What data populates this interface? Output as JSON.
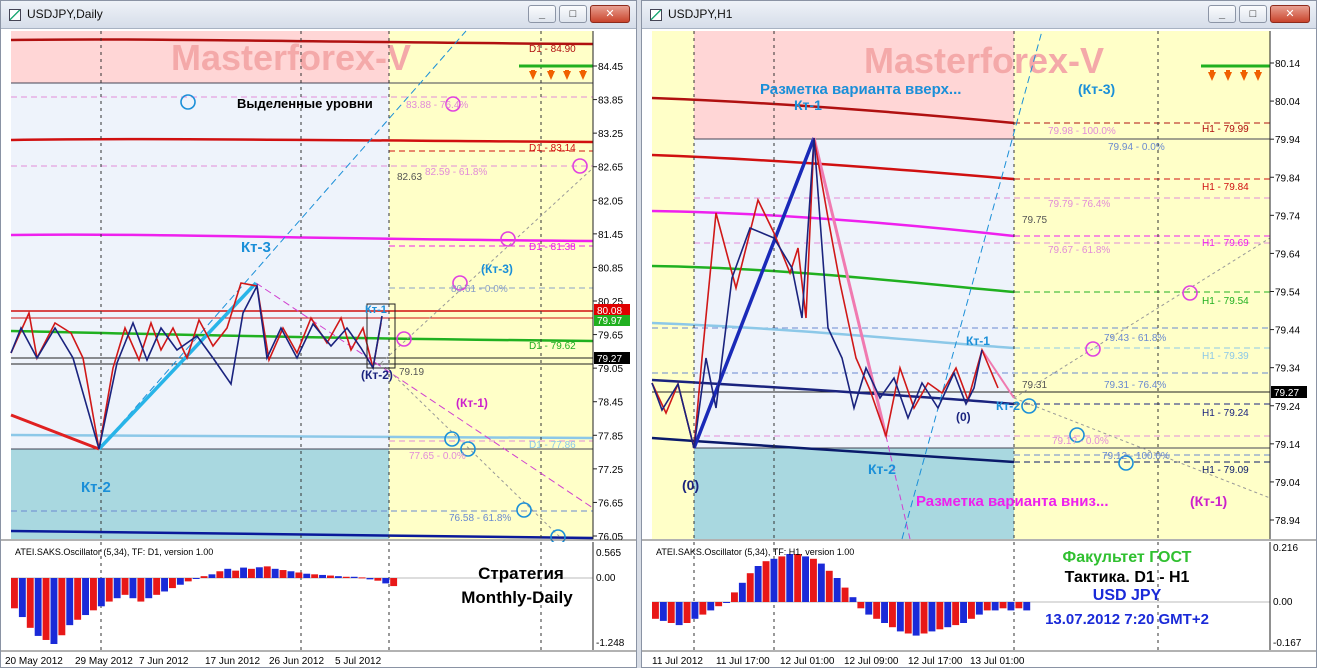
{
  "windows": [
    {
      "title": "USDJPY,Daily"
    },
    {
      "title": "USDJPY,H1"
    }
  ],
  "window_buttons": {
    "minimize": "_",
    "maximize": "□",
    "close": "✕"
  },
  "colors": {
    "pink_zone": "#ffd6d6",
    "blue_zone": "#eef3fb",
    "yellow_zone": "#ffffc8",
    "teal_zone": "#a9d8e0",
    "accent_blue": "#1a8fd8",
    "magenta": "#ee20ee",
    "red": "#d01010",
    "navy": "#0a1a9a"
  },
  "chart_data": [
    {
      "type": "line",
      "title": "USDJPY,Daily",
      "watermark": "Masterforex-V",
      "ylim": [
        76.05,
        85.0
      ],
      "x_tick_labels": [
        "20 May 2012",
        "29 May 2012",
        "7 Jun 2012",
        "17 Jun 2012",
        "26 Jun 2012",
        "5 Jul 2012"
      ],
      "y_ticks": [
        "84.45",
        "83.85",
        "83.25",
        "82.65",
        "82.05",
        "81.45",
        "80.85",
        "80.25",
        "79.65",
        "79.05",
        "78.45",
        "77.85",
        "77.25",
        "76.65",
        "76.05"
      ],
      "current_price": "79.27",
      "price_badge": "80.08",
      "price_badge_2": "79.97",
      "price_series_red": [
        79.7,
        80.2,
        79.5,
        80.1,
        79.6,
        80.0,
        78.9,
        79.2
      ],
      "price_series_blue": [
        77.5,
        78.3,
        79.0,
        79.7,
        80.5,
        79.3,
        79.5,
        79.2
      ],
      "annotations": [
        {
          "text": "Выделенные уровни"
        },
        {
          "text": "D1 - 84.90"
        },
        {
          "text": "83.88 - 76.4%"
        },
        {
          "text": "D1 - 83.14"
        },
        {
          "text": "82.63"
        },
        {
          "text": "82.59 - 61.8%"
        },
        {
          "text": "D1 - 81.38"
        },
        {
          "text": "80.61 - 0.0%"
        },
        {
          "text": "(Кт-3)"
        },
        {
          "text": "Кт-3"
        },
        {
          "text": "Кт-1"
        },
        {
          "text": "D1 - 79.62"
        },
        {
          "text": "(Кт-2)"
        },
        {
          "text": "79.19"
        },
        {
          "text": "(Кт-1)"
        },
        {
          "text": "D1 - 77.86"
        },
        {
          "text": "77.65 - 0.0%"
        },
        {
          "text": "Кт-2"
        },
        {
          "text": "76.58 - 61.8%"
        }
      ],
      "oscillator": {
        "label": "ATEI.SAKS.Oscillator (5,34), TF: D1, version 1.00",
        "y_ticks": [
          "0.565",
          "0.00",
          "-1.248"
        ],
        "strategy_title_1": "Стратегия",
        "strategy_title_2": "Monthly-Daily",
        "bars": [
          -0.45,
          -0.58,
          -0.74,
          -0.86,
          -0.92,
          -0.98,
          -0.85,
          -0.7,
          -0.62,
          -0.55,
          -0.48,
          -0.42,
          -0.35,
          -0.3,
          -0.25,
          -0.3,
          -0.35,
          -0.3,
          -0.25,
          -0.2,
          -0.15,
          -0.1,
          -0.05,
          0.0,
          0.06,
          0.12,
          0.22,
          0.3,
          0.24,
          0.34,
          0.3,
          0.35,
          0.38,
          0.3,
          0.26,
          0.22,
          0.18,
          0.14,
          0.12,
          0.1,
          0.08,
          0.06,
          0.04,
          0.04,
          0.02,
          -0.02,
          -0.04,
          -0.08,
          -0.12
        ]
      }
    },
    {
      "type": "line",
      "title": "USDJPY,H1",
      "watermark": "Masterforex-V",
      "ylim": [
        78.88,
        80.22
      ],
      "x_tick_labels": [
        "11 Jul 2012",
        "11 Jul 17:00",
        "12 Jul 01:00",
        "12 Jul 09:00",
        "12 Jul 17:00",
        "13 Jul 01:00"
      ],
      "y_ticks": [
        "80.14",
        "80.04",
        "79.94",
        "79.84",
        "79.74",
        "79.64",
        "79.54",
        "79.44",
        "79.34",
        "79.24",
        "79.14",
        "79.04",
        "78.94"
      ],
      "current_price": "79.27",
      "price_series_red": [
        79.28,
        79.18,
        79.72,
        79.55,
        79.78,
        79.65,
        79.7,
        79.45,
        79.6
      ],
      "price_series_navy": [
        79.2,
        79.26,
        79.18,
        79.24,
        79.2,
        79.23,
        79.25,
        79.22,
        79.38
      ],
      "annotations": [
        {
          "text": "Разметка варианта вверх..."
        },
        {
          "text": "(Кт-3)"
        },
        {
          "text": "Кт-1"
        },
        {
          "text": "79.98 - 100.0%"
        },
        {
          "text": "H1 - 79.99"
        },
        {
          "text": "79.94 - 0.0%"
        },
        {
          "text": "H1 - 79.84"
        },
        {
          "text": "79.79 - 76.4%"
        },
        {
          "text": "79.75"
        },
        {
          "text": "H1 - 79.69"
        },
        {
          "text": "79.67 - 61.8%"
        },
        {
          "text": "H1 - 79.54"
        },
        {
          "text": "79.43 - 61.8%"
        },
        {
          "text": "Кт-1"
        },
        {
          "text": "H1 - 79.39"
        },
        {
          "text": "79.31"
        },
        {
          "text": "79.31 - 76.4%"
        },
        {
          "text": "(0)"
        },
        {
          "text": "Кт-2"
        },
        {
          "text": "H1 - 79.24"
        },
        {
          "text": "79.1? - 0.0%"
        },
        {
          "text": "79.12 - 100.0%"
        },
        {
          "text": "H1 - 79.09"
        },
        {
          "text": "(0)"
        },
        {
          "text": "Кт-2"
        },
        {
          "text": "Разметка варианта вниз..."
        },
        {
          "text": "(Кт-1)"
        }
      ],
      "oscillator": {
        "label": "ATEI.SAKS.Oscillator (5,34), TF: H1, version 1.00",
        "y_ticks": [
          "0.216",
          "0.00",
          "-0.167"
        ],
        "info_1": "Факультет ГОСТ",
        "info_2": "Тактика. D1 - H1",
        "info_3": "USD JPY",
        "info_4": "13.07.2012 7:20 GMT+2",
        "bars": [
          -0.08,
          -0.09,
          -0.1,
          -0.11,
          -0.1,
          -0.08,
          -0.06,
          -0.04,
          -0.02,
          0.0,
          0.04,
          0.08,
          0.12,
          0.15,
          0.17,
          0.18,
          0.19,
          0.2,
          0.2,
          0.19,
          0.18,
          0.16,
          0.13,
          0.1,
          0.06,
          0.02,
          -0.03,
          -0.06,
          -0.08,
          -0.1,
          -0.12,
          -0.14,
          -0.15,
          -0.16,
          -0.15,
          -0.14,
          -0.13,
          -0.12,
          -0.11,
          -0.1,
          -0.08,
          -0.06,
          -0.04,
          -0.04,
          -0.03,
          -0.04,
          -0.03,
          -0.04
        ]
      }
    }
  ]
}
